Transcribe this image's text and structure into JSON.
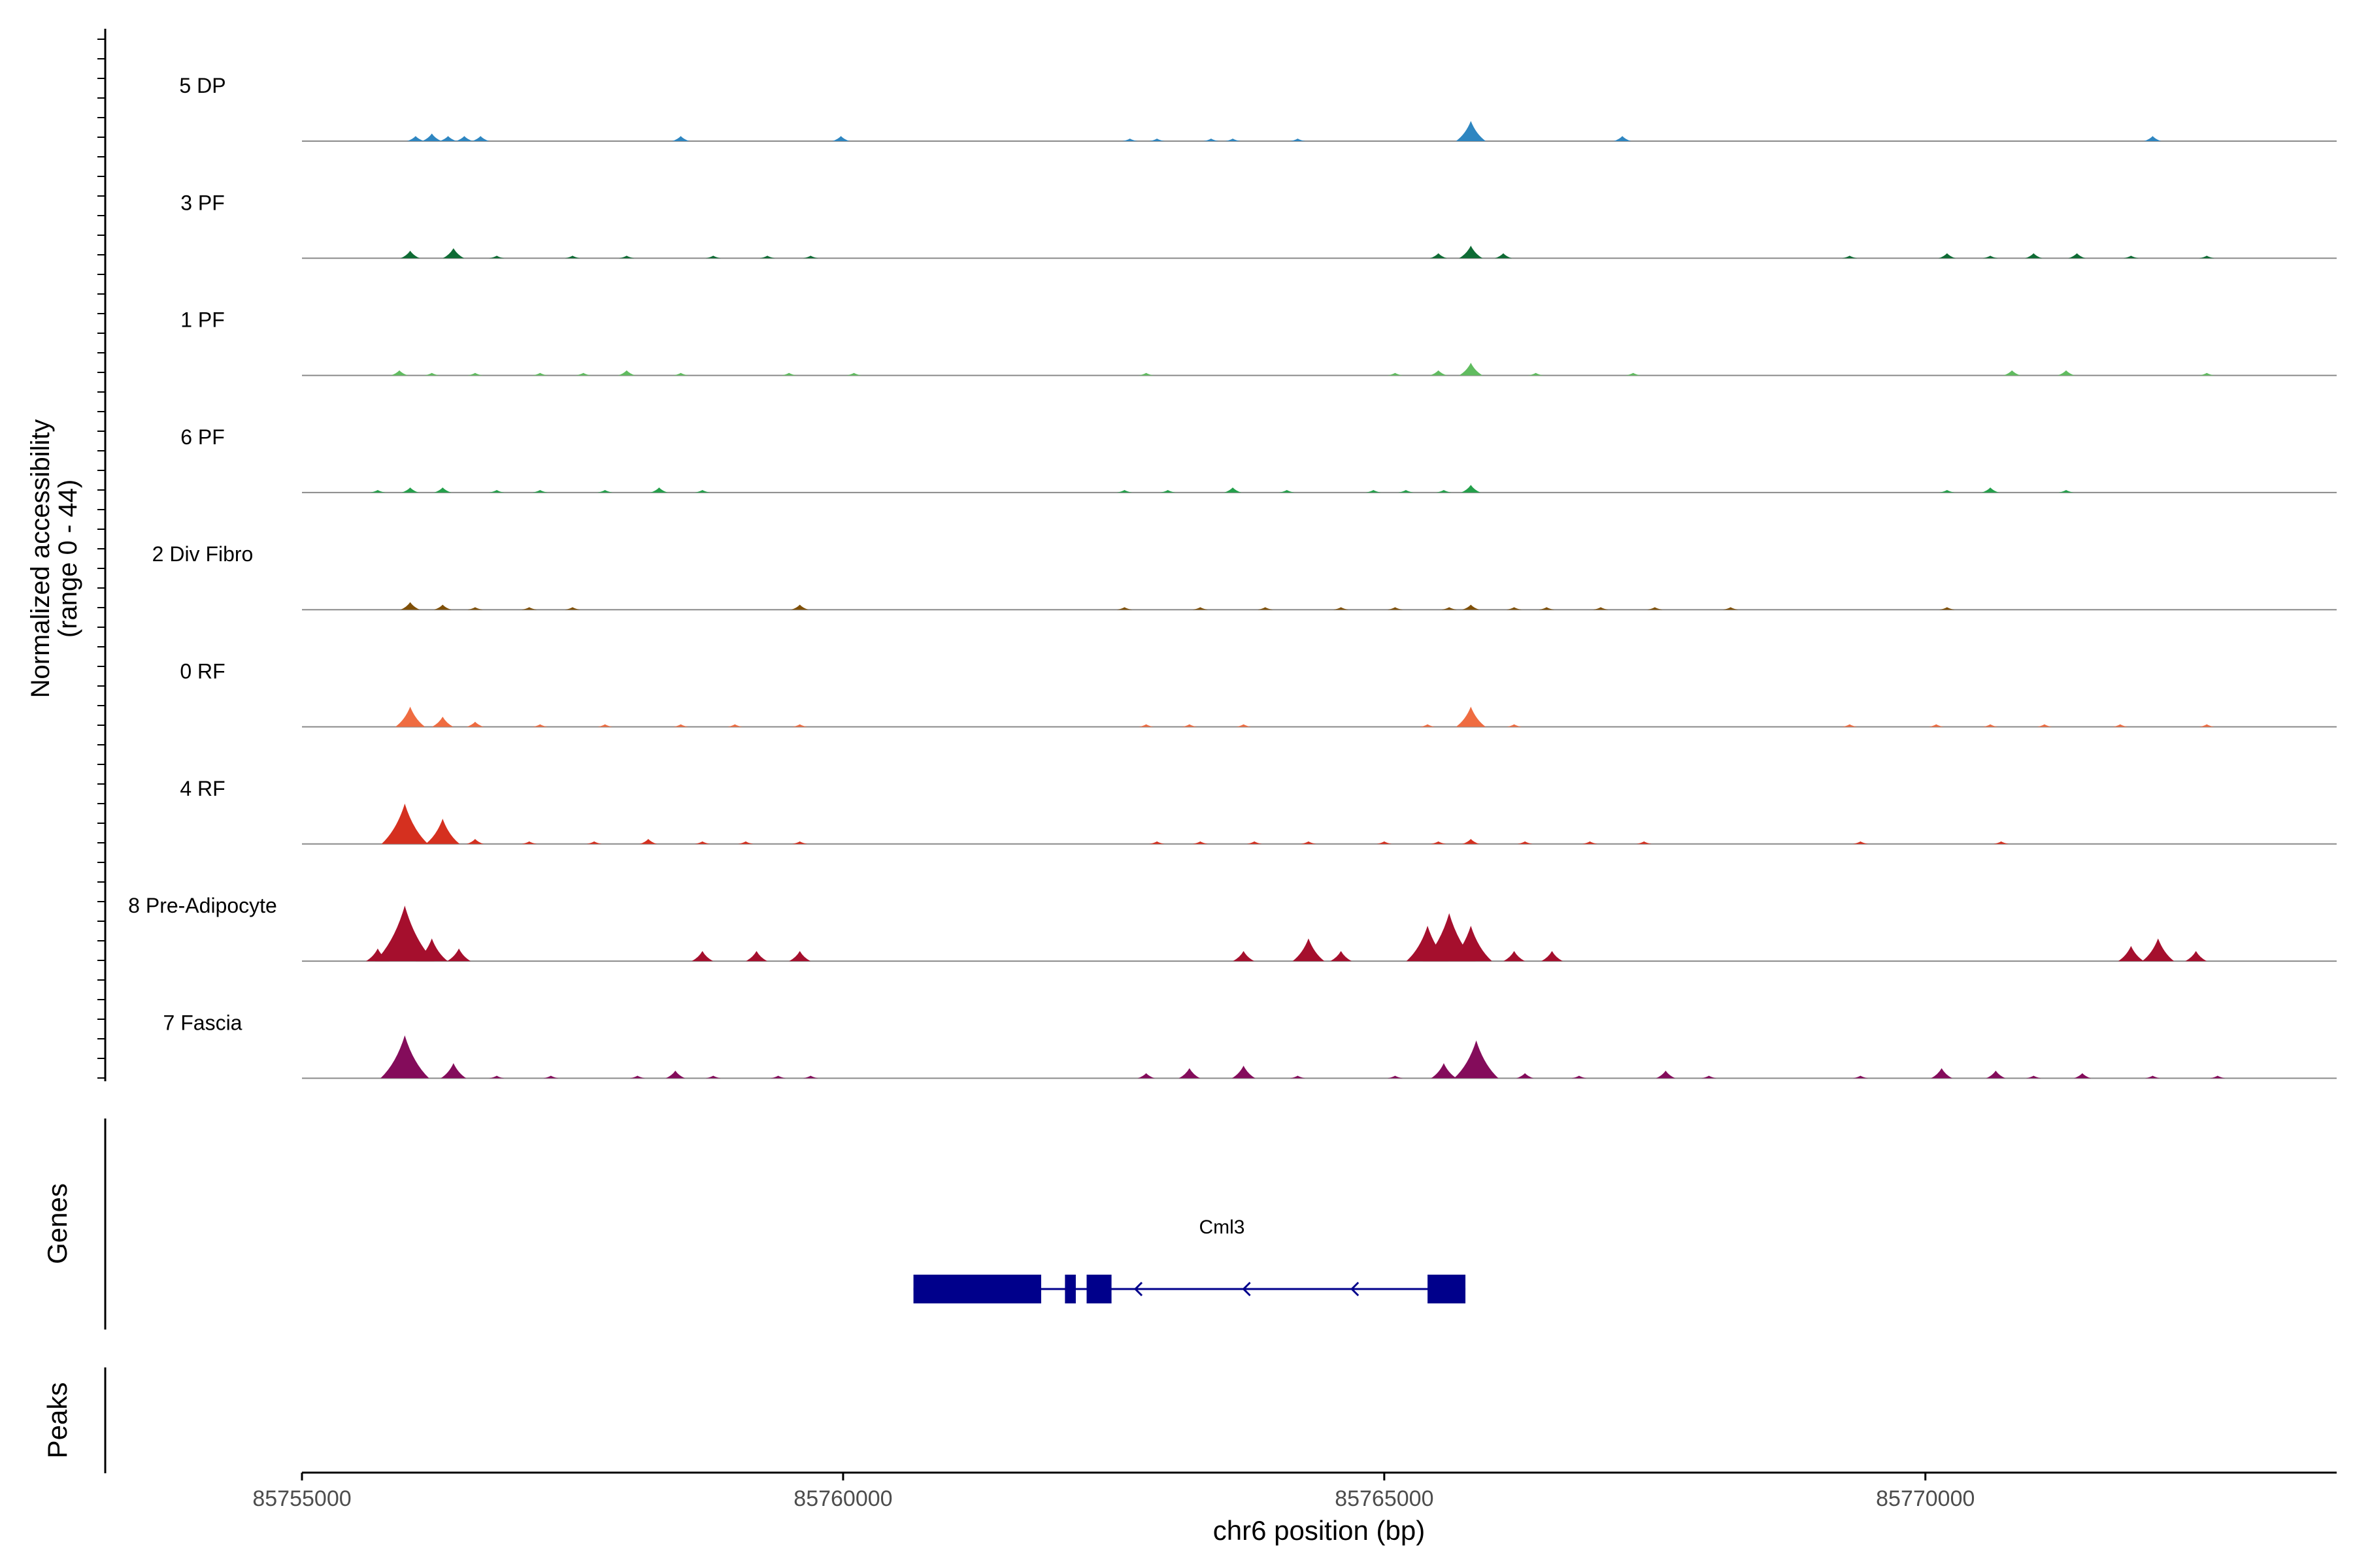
{
  "chart_data": {
    "type": "area",
    "title": "",
    "ylabel_line1": "Normalized accessibility",
    "ylabel_line2": "(range 0 - 44)",
    "xlabel": "chr6 position (bp)",
    "xlim": [
      85755000,
      85773800
    ],
    "ylim": [
      0,
      44
    ],
    "xticks": [
      85755000,
      85760000,
      85765000,
      85770000
    ],
    "xtick_labels": [
      "85755000",
      "85760000",
      "85765000",
      "85770000"
    ],
    "genes_label": "Genes",
    "peaks_label": "Peaks",
    "gene": {
      "name": "Cml3",
      "strand": "-",
      "color": "#00008B",
      "line": [
        85760650,
        85765750
      ],
      "exons": [
        [
          85760650,
          85761830
        ],
        [
          85762050,
          85762150
        ],
        [
          85762250,
          85762480
        ],
        [
          85765400,
          85765750
        ]
      ],
      "arrows": [
        85762700,
        85763700,
        85764700
      ]
    },
    "series": [
      {
        "name": "5 DP",
        "color": "#2E86C1",
        "peaks": [
          [
            85756050,
            2
          ],
          [
            85756200,
            3
          ],
          [
            85756350,
            2
          ],
          [
            85756500,
            2
          ],
          [
            85756650,
            2
          ],
          [
            85758500,
            2
          ],
          [
            85759980,
            2
          ],
          [
            85762650,
            1
          ],
          [
            85762900,
            1
          ],
          [
            85763400,
            1
          ],
          [
            85763600,
            1
          ],
          [
            85764200,
            1
          ],
          [
            85765800,
            8
          ],
          [
            85767200,
            2
          ],
          [
            85772100,
            2
          ]
        ]
      },
      {
        "name": "3 PF",
        "color": "#0E6B34",
        "peaks": [
          [
            85756000,
            3
          ],
          [
            85756400,
            4
          ],
          [
            85756800,
            1
          ],
          [
            85757500,
            1
          ],
          [
            85758000,
            1
          ],
          [
            85758800,
            1
          ],
          [
            85759300,
            1
          ],
          [
            85759700,
            1
          ],
          [
            85765500,
            2
          ],
          [
            85765800,
            5
          ],
          [
            85766100,
            2
          ],
          [
            85769300,
            1
          ],
          [
            85770200,
            2
          ],
          [
            85770600,
            1
          ],
          [
            85771000,
            2
          ],
          [
            85771400,
            2
          ],
          [
            85771900,
            1
          ],
          [
            85772600,
            1
          ]
        ]
      },
      {
        "name": "1 PF",
        "color": "#60BC5F",
        "peaks": [
          [
            85755900,
            2
          ],
          [
            85756200,
            1
          ],
          [
            85756600,
            1
          ],
          [
            85757200,
            1
          ],
          [
            85757600,
            1
          ],
          [
            85758000,
            2
          ],
          [
            85758500,
            1
          ],
          [
            85759500,
            1
          ],
          [
            85760100,
            1
          ],
          [
            85762800,
            1
          ],
          [
            85765100,
            1
          ],
          [
            85765500,
            2
          ],
          [
            85765800,
            5
          ],
          [
            85766400,
            1
          ],
          [
            85767300,
            1
          ],
          [
            85770800,
            2
          ],
          [
            85771300,
            2
          ],
          [
            85772600,
            1
          ]
        ]
      },
      {
        "name": "6 PF",
        "color": "#24A04B",
        "peaks": [
          [
            85755700,
            1
          ],
          [
            85756000,
            2
          ],
          [
            85756300,
            2
          ],
          [
            85756800,
            1
          ],
          [
            85757200,
            1
          ],
          [
            85757800,
            1
          ],
          [
            85758300,
            2
          ],
          [
            85758700,
            1
          ],
          [
            85762600,
            1
          ],
          [
            85763000,
            1
          ],
          [
            85763600,
            2
          ],
          [
            85764100,
            1
          ],
          [
            85764900,
            1
          ],
          [
            85765200,
            1
          ],
          [
            85765550,
            1
          ],
          [
            85765800,
            3
          ],
          [
            85770200,
            1
          ],
          [
            85770600,
            2
          ],
          [
            85771300,
            1
          ]
        ]
      },
      {
        "name": "2 Div Fibro",
        "color": "#7F4F07",
        "peaks": [
          [
            85756000,
            3
          ],
          [
            85756300,
            2
          ],
          [
            85756600,
            1
          ],
          [
            85757100,
            1
          ],
          [
            85757500,
            1
          ],
          [
            85759600,
            2
          ],
          [
            85762600,
            1
          ],
          [
            85763300,
            1
          ],
          [
            85763900,
            1
          ],
          [
            85764600,
            1
          ],
          [
            85765100,
            1
          ],
          [
            85765600,
            1
          ],
          [
            85765800,
            2
          ],
          [
            85766200,
            1
          ],
          [
            85766500,
            1
          ],
          [
            85767000,
            1
          ],
          [
            85767500,
            1
          ],
          [
            85768200,
            1
          ],
          [
            85770200,
            1
          ]
        ]
      },
      {
        "name": "0 RF",
        "color": "#EF6C41",
        "peaks": [
          [
            85756000,
            8
          ],
          [
            85756300,
            4
          ],
          [
            85756600,
            2
          ],
          [
            85757200,
            1
          ],
          [
            85757800,
            1
          ],
          [
            85758500,
            1
          ],
          [
            85759000,
            1
          ],
          [
            85759600,
            1
          ],
          [
            85762800,
            1
          ],
          [
            85763200,
            1
          ],
          [
            85763700,
            1
          ],
          [
            85765400,
            1
          ],
          [
            85765800,
            8
          ],
          [
            85766200,
            1
          ],
          [
            85769300,
            1
          ],
          [
            85770100,
            1
          ],
          [
            85770600,
            1
          ],
          [
            85771100,
            1
          ],
          [
            85771800,
            1
          ],
          [
            85772600,
            1
          ]
        ]
      },
      {
        "name": "4 RF",
        "color": "#D5301F",
        "peaks": [
          [
            85755950,
            16
          ],
          [
            85756300,
            10
          ],
          [
            85756600,
            2
          ],
          [
            85757100,
            1
          ],
          [
            85757700,
            1
          ],
          [
            85758200,
            2
          ],
          [
            85758700,
            1
          ],
          [
            85759100,
            1
          ],
          [
            85759600,
            1
          ],
          [
            85762900,
            1
          ],
          [
            85763300,
            1
          ],
          [
            85763800,
            1
          ],
          [
            85764300,
            1
          ],
          [
            85765000,
            1
          ],
          [
            85765500,
            1
          ],
          [
            85765800,
            2
          ],
          [
            85766300,
            1
          ],
          [
            85766900,
            1
          ],
          [
            85767400,
            1
          ],
          [
            85769400,
            1
          ],
          [
            85770700,
            1
          ]
        ]
      },
      {
        "name": "8 Pre-Adipocyte",
        "color": "#A50F2D",
        "peaks": [
          [
            85755700,
            5
          ],
          [
            85755950,
            22
          ],
          [
            85756200,
            9
          ],
          [
            85756450,
            5
          ],
          [
            85758700,
            4
          ],
          [
            85759200,
            4
          ],
          [
            85759600,
            4
          ],
          [
            85763700,
            4
          ],
          [
            85764300,
            9
          ],
          [
            85764600,
            4
          ],
          [
            85765400,
            14
          ],
          [
            85765600,
            19
          ],
          [
            85765800,
            14
          ],
          [
            85766200,
            4
          ],
          [
            85766550,
            4
          ],
          [
            85771900,
            6
          ],
          [
            85772150,
            9
          ],
          [
            85772500,
            4
          ]
        ]
      },
      {
        "name": "7 Fascia",
        "color": "#840C5B",
        "peaks": [
          [
            85755950,
            17
          ],
          [
            85756400,
            6
          ],
          [
            85756800,
            1
          ],
          [
            85757300,
            1
          ],
          [
            85758100,
            1
          ],
          [
            85758450,
            3
          ],
          [
            85758800,
            1
          ],
          [
            85759400,
            1
          ],
          [
            85759700,
            1
          ],
          [
            85762800,
            2
          ],
          [
            85763200,
            4
          ],
          [
            85763700,
            5
          ],
          [
            85764200,
            1
          ],
          [
            85765100,
            1
          ],
          [
            85765550,
            6
          ],
          [
            85765850,
            15
          ],
          [
            85766300,
            2
          ],
          [
            85766800,
            1
          ],
          [
            85767600,
            3
          ],
          [
            85768000,
            1
          ],
          [
            85769400,
            1
          ],
          [
            85770150,
            4
          ],
          [
            85770650,
            3
          ],
          [
            85771000,
            1
          ],
          [
            85771450,
            2
          ],
          [
            85772100,
            1
          ],
          [
            85772700,
            1
          ]
        ]
      }
    ]
  }
}
